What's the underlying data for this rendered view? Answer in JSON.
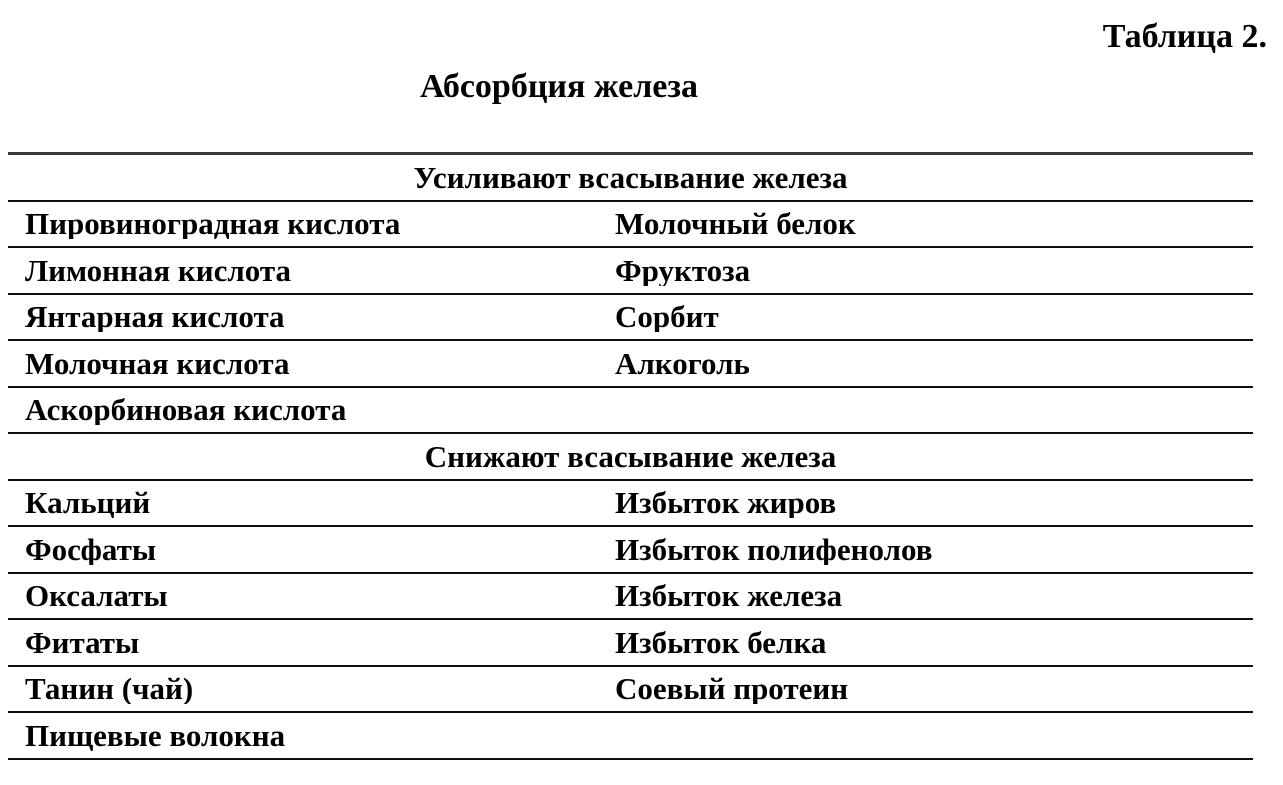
{
  "title": "Таблица 2.",
  "caption": "Абсорбция железа",
  "table": {
    "sections": [
      {
        "header": "Усиливают всасывание железа",
        "rows": [
          {
            "left": "Пировиноградная кислота",
            "right": "Молочный белок"
          },
          {
            "left": "Лимонная кислота",
            "right": "Фруктоза"
          },
          {
            "left": "Янтарная кислота",
            "right": "Сорбит"
          },
          {
            "left": "Молочная кислота",
            "right": "Алкоголь"
          },
          {
            "left": "Аскорбиновая кислота",
            "right": ""
          }
        ]
      },
      {
        "header": "Снижают всасывание железа",
        "rows": [
          {
            "left": "Кальций",
            "right": "Избыток жиров"
          },
          {
            "left": "Фосфаты",
            "right": "Избыток полифенолов"
          },
          {
            "left": "Оксалаты",
            "right": "Избыток железа"
          },
          {
            "left": "Фитаты",
            "right": "Избыток белка"
          },
          {
            "left": "Танин (чай)",
            "right": "Соевый протеин"
          },
          {
            "left": "Пищевые волокна",
            "right": ""
          }
        ]
      }
    ]
  }
}
